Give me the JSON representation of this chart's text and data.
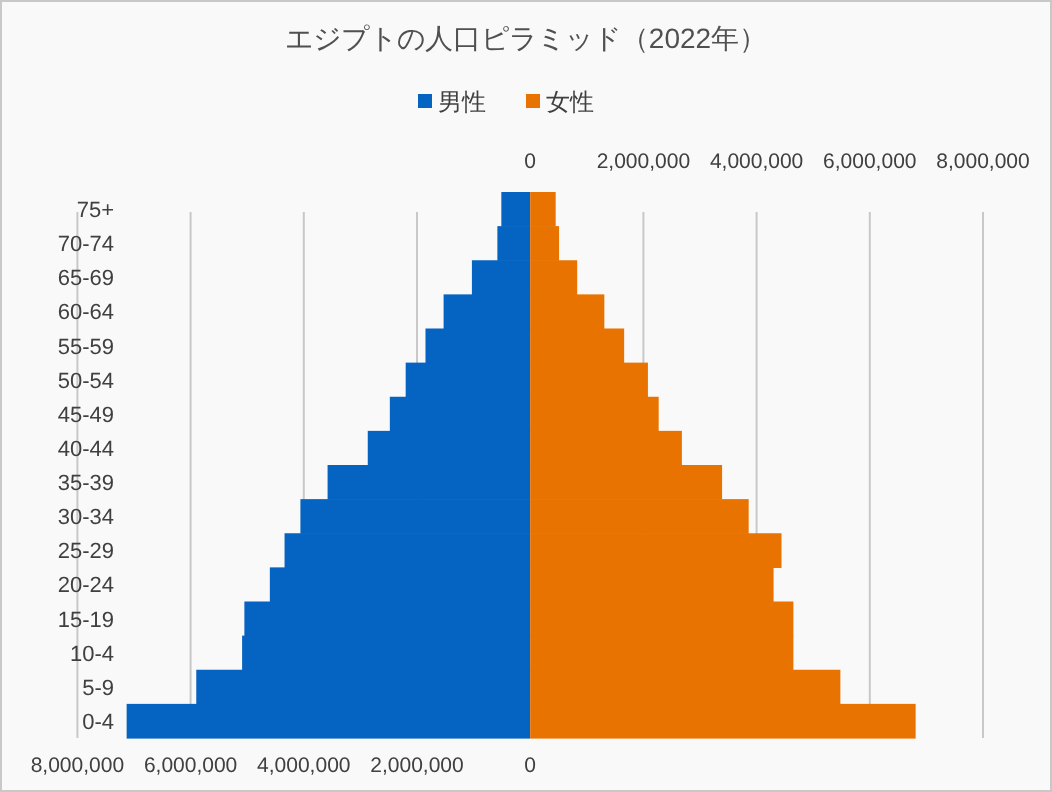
{
  "chart_data": {
    "type": "bar",
    "orientation": "horizontal",
    "title": "エジプトの人口ピラミッド（2022年）",
    "categories": [
      "75+",
      "70-74",
      "65-69",
      "60-64",
      "55-59",
      "50-54",
      "45-49",
      "40-44",
      "35-39",
      "30-34",
      "25-29",
      "20-24",
      "15-19",
      "10-4",
      "5-9",
      "0-4"
    ],
    "series": [
      {
        "name": "男性",
        "color": "#0563c1",
        "values": [
          -510000,
          -580000,
          -1030000,
          -1530000,
          -1850000,
          -2200000,
          -2480000,
          -2870000,
          -3580000,
          -4060000,
          -4340000,
          -4600000,
          -5050000,
          -5090000,
          -5900000,
          -7130000
        ]
      },
      {
        "name": "女性",
        "color": "#e97300",
        "values": [
          450000,
          510000,
          830000,
          1310000,
          1660000,
          2080000,
          2270000,
          2680000,
          3390000,
          3860000,
          4440000,
          4300000,
          4650000,
          4650000,
          5480000,
          6810000
        ]
      }
    ],
    "xlim": [
      -8000000,
      8000000
    ],
    "xticks": [
      {
        "value": -8000000,
        "label": "8,000,000"
      },
      {
        "value": -6000000,
        "label": "6,000,000"
      },
      {
        "value": -4000000,
        "label": "4,000,000"
      },
      {
        "value": -2000000,
        "label": "2,000,000"
      },
      0
    ],
    "x2lim": [
      -8000000,
      8000000
    ],
    "x2ticks": [
      0,
      {
        "value": 2000000,
        "label": "2,000,000"
      },
      {
        "value": 4000000,
        "label": "4,000,000"
      },
      {
        "value": 6000000,
        "label": "6,000,000"
      },
      {
        "value": 8000000,
        "label": "8,000,000"
      }
    ],
    "grid": "x",
    "legend": "top",
    "stacked": true
  }
}
